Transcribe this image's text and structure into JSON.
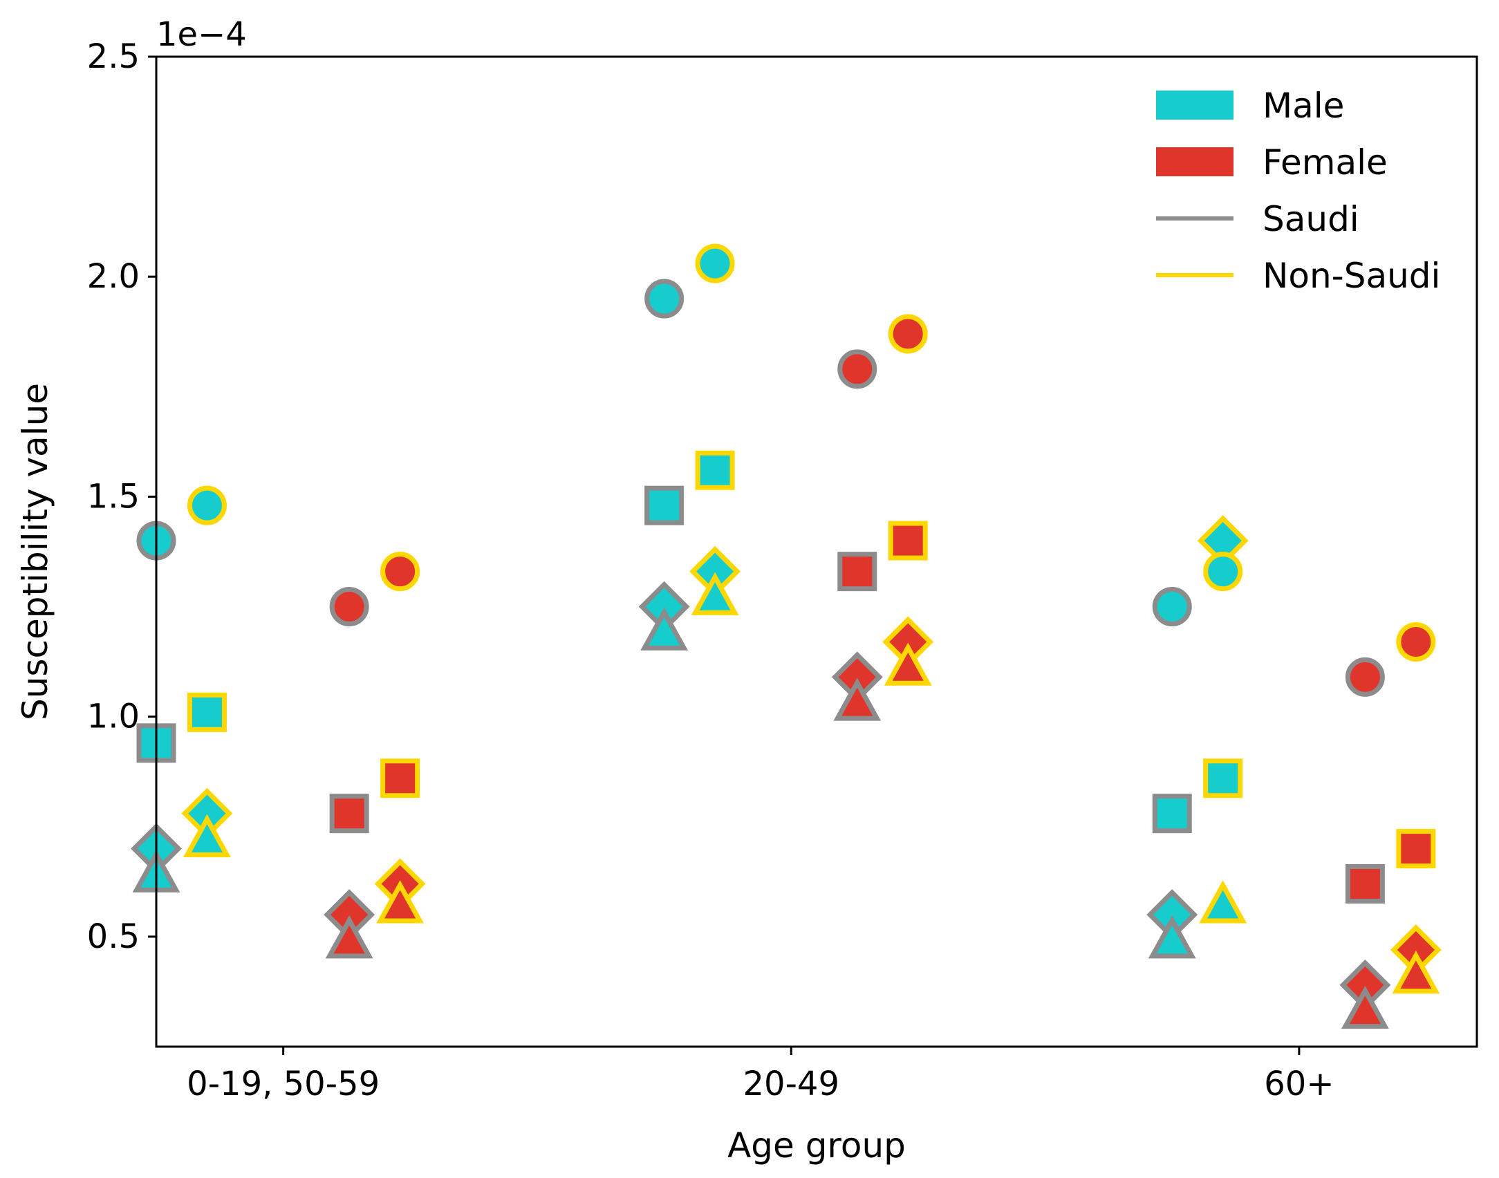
{
  "chart_data": {
    "type": "scatter",
    "xlabel": "Age group",
    "ylabel": "Susceptibility value",
    "y_offset_label": "1e−4",
    "categories": [
      "0-19, 50-59",
      "20-49",
      "60+"
    ],
    "ylim": [
      0.25,
      2.5
    ],
    "yticks": [
      0.5,
      1.0,
      1.5,
      2.0,
      2.5
    ],
    "ytick_labels": [
      "0.5",
      "1.0",
      "1.5",
      "2.0",
      "2.5"
    ],
    "grid": false,
    "legend": {
      "placement": "top-right",
      "entries": [
        {
          "label": "Male",
          "kind": "patch",
          "color": "#17cccc"
        },
        {
          "label": "Female",
          "kind": "patch",
          "color": "#e0352b"
        },
        {
          "label": "Saudi",
          "kind": "line",
          "color": "#8c8c8c"
        },
        {
          "label": "Non-Saudi",
          "kind": "line",
          "color": "#ffd700"
        }
      ]
    },
    "marker_shapes": [
      "circle",
      "square",
      "diamond",
      "triangle"
    ],
    "series": [
      {
        "sex": "Male",
        "nationality": "Saudi",
        "offset": -0.25,
        "values": {
          "circle": [
            1.4,
            1.95,
            1.25
          ],
          "square": [
            0.94,
            1.48,
            0.78
          ],
          "diamond": [
            0.7,
            1.25,
            0.55
          ],
          "triangle": [
            0.64,
            1.19,
            0.49
          ]
        }
      },
      {
        "sex": "Male",
        "nationality": "Non-Saudi",
        "offset": -0.15,
        "values": {
          "circle": [
            1.48,
            2.03,
            1.33
          ],
          "square": [
            1.01,
            1.56,
            0.86
          ],
          "diamond": [
            0.78,
            1.33,
            1.4
          ],
          "triangle": [
            0.72,
            1.27,
            0.57
          ]
        }
      },
      {
        "sex": "Female",
        "nationality": "Saudi",
        "offset": 0.13,
        "values": {
          "circle": [
            1.25,
            1.79,
            1.09
          ],
          "square": [
            0.78,
            1.33,
            0.62
          ],
          "diamond": [
            0.55,
            1.09,
            0.39
          ],
          "triangle": [
            0.49,
            1.03,
            0.33
          ]
        }
      },
      {
        "sex": "Female",
        "nationality": "Non-Saudi",
        "offset": 0.23,
        "values": {
          "circle": [
            1.33,
            1.87,
            1.17
          ],
          "square": [
            0.86,
            1.4,
            0.7
          ],
          "diamond": [
            0.62,
            1.17,
            0.47
          ],
          "triangle": [
            0.57,
            1.11,
            0.41
          ]
        }
      }
    ]
  }
}
